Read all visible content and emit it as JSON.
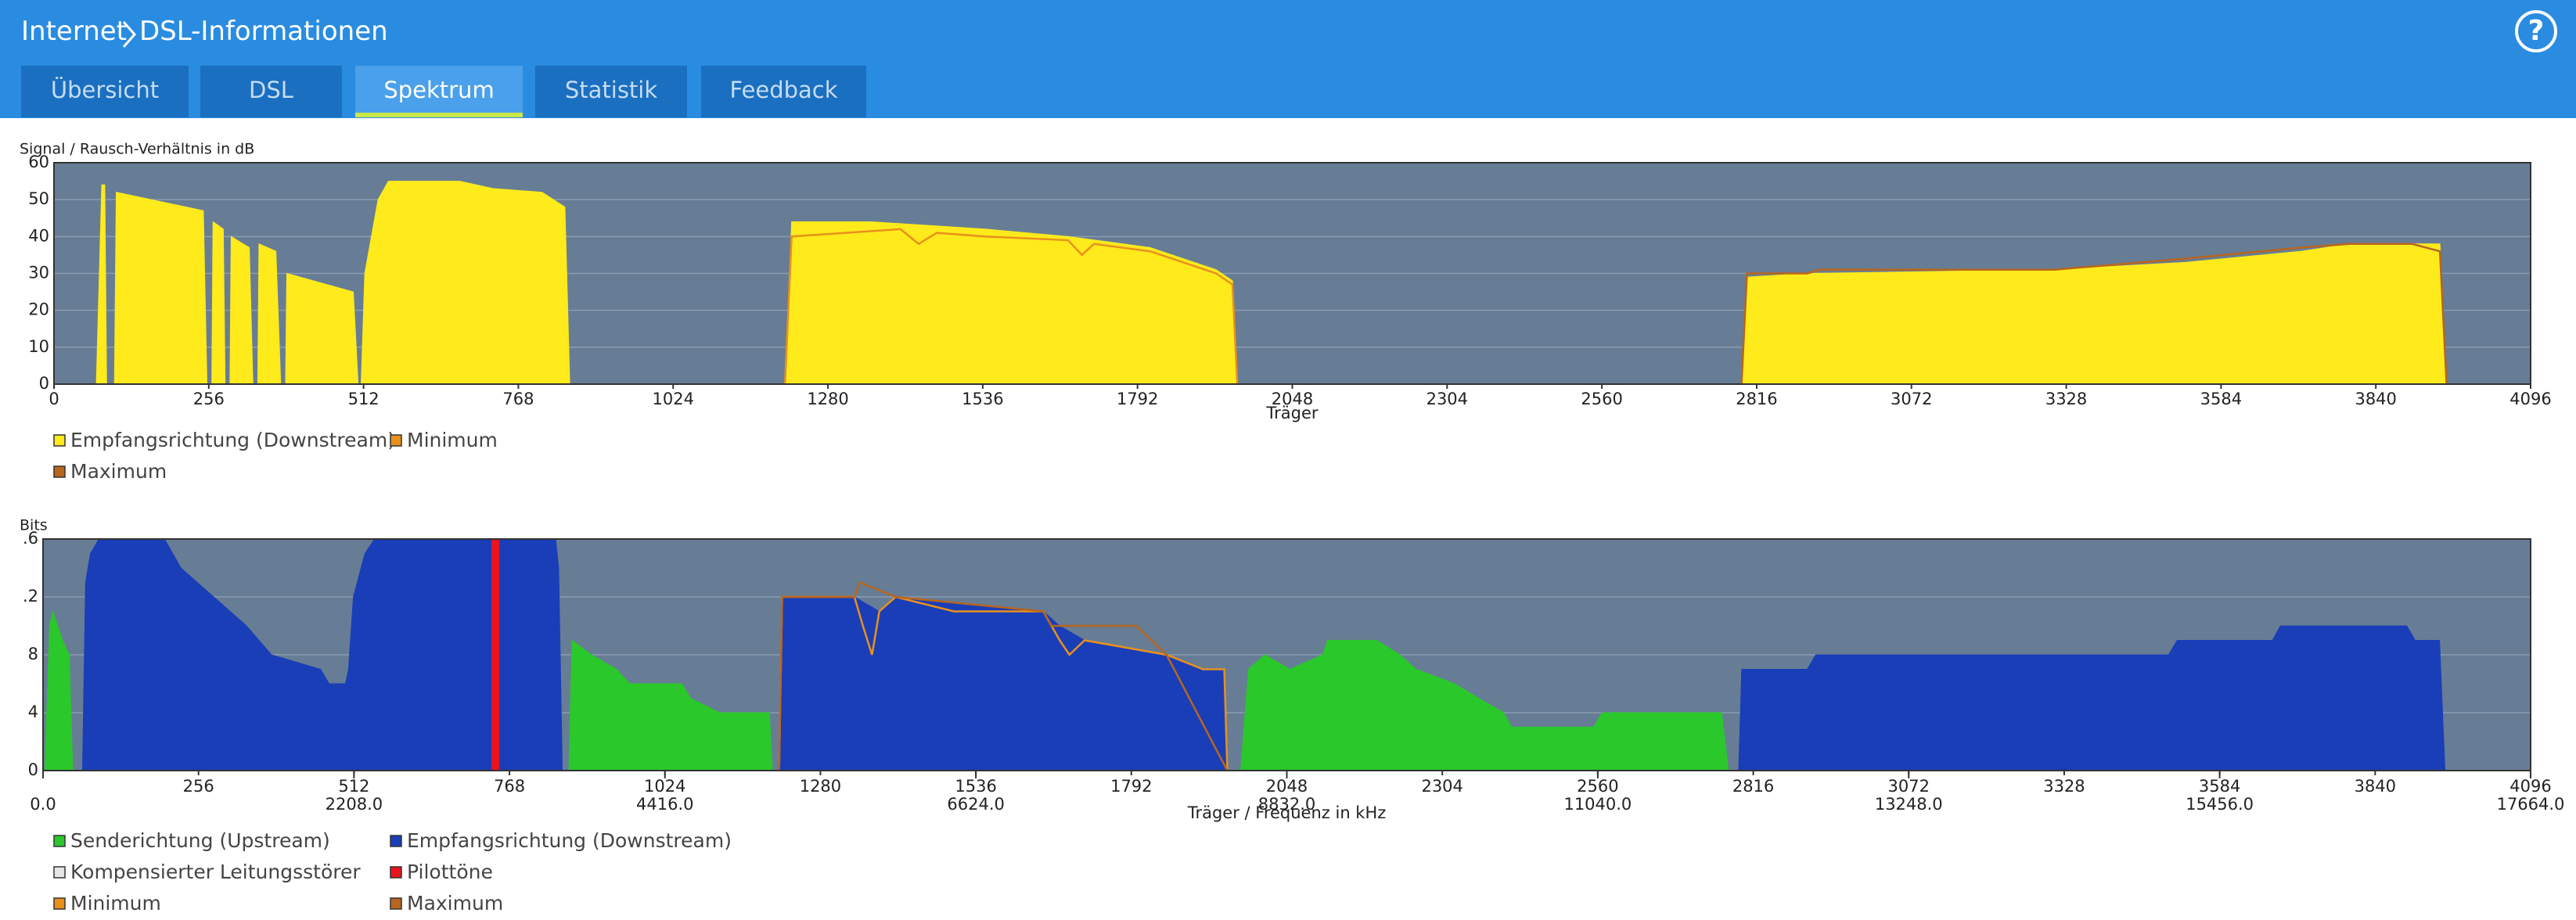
{
  "header": {
    "title": [
      "Internet",
      "DSL-Informationen"
    ],
    "help": "?"
  },
  "tabs": {
    "items": [
      "Übersicht",
      "DSL",
      "Spektrum",
      "Statistik",
      "Feedback"
    ],
    "active": 2
  },
  "chart_data": [
    {
      "type": "area",
      "y_label": "Signal / Rausch-Verhältnis in dB",
      "x_label": "Träger",
      "xlim": [
        0,
        4096
      ],
      "ylim": [
        0,
        60
      ],
      "xticks": [
        0,
        256,
        512,
        768,
        1024,
        1280,
        1536,
        1792,
        2048,
        2304,
        2560,
        2816,
        3072,
        3328,
        3584,
        3840,
        4096
      ],
      "yticks": [
        0,
        10,
        20,
        30,
        40,
        50,
        60
      ],
      "grid": true,
      "series": [
        {
          "name": "Empfangsrichtung (Downstream)",
          "color": "#ffea1c",
          "type": "area",
          "x": [
            70,
            79,
            84,
            87,
            100,
            103,
            247,
            253,
            261,
            263,
            280,
            283,
            291,
            293,
            323,
            329,
            337,
            339,
            367,
            375,
            383,
            385,
            495,
            503,
            508,
            514,
            536,
            553,
            671,
            726,
            807,
            845,
            853,
            1209,
            1220,
            1351,
            1541,
            1677,
            1813,
            1922,
            1949,
            1957,
            2791,
            2800,
            2900,
            3308,
            3525,
            3716,
            3797,
            3946,
            3957
          ],
          "values": [
            0,
            54,
            54,
            0,
            0,
            52,
            47,
            0,
            0,
            44,
            42,
            0,
            0,
            40,
            37,
            0,
            0,
            38,
            36,
            0,
            0,
            30,
            25,
            0,
            0,
            30,
            50,
            55,
            55,
            53,
            52,
            48,
            0,
            0,
            44,
            44,
            42,
            40,
            37,
            31,
            28,
            0,
            0,
            29,
            30,
            31,
            33,
            36,
            38,
            38,
            0
          ]
        },
        {
          "name": "Minimum",
          "color": "#e8901c",
          "type": "line",
          "x": [
            1209,
            1220,
            1400,
            1430,
            1460,
            1541,
            1677,
            1700,
            1720,
            1813,
            1922,
            1949,
            1957
          ],
          "values": [
            0,
            40,
            42,
            38,
            41,
            40,
            39,
            35,
            38,
            36,
            30,
            27,
            0
          ]
        },
        {
          "name": "Maximum",
          "color": "#b8651e",
          "type": "line",
          "x": [
            2791,
            2800,
            2900,
            2920,
            3308,
            3525,
            3716,
            3797,
            3900,
            3946,
            3957
          ],
          "values": [
            0,
            30,
            30,
            31,
            31,
            34,
            37,
            38,
            38,
            36,
            0
          ]
        }
      ]
    },
    {
      "type": "area",
      "y_label": "Bits",
      "x_label": "Träger / Frequenz in kHz",
      "xlim": [
        0,
        4096
      ],
      "ylim": [
        0,
        16
      ],
      "xticks": [
        256,
        512,
        768,
        1024,
        1280,
        1536,
        1792,
        2048,
        2304,
        2560,
        2816,
        3072,
        3328,
        3584,
        3840,
        4096
      ],
      "x2ticks": [
        {
          "value": 0,
          "label": "0.0"
        },
        {
          "value": 512,
          "label": "2208.0"
        },
        {
          "value": 1024,
          "label": "4416.0"
        },
        {
          "value": 1536,
          "label": "6624.0"
        },
        {
          "value": 2048,
          "label": "8832.0"
        },
        {
          "value": 2560,
          "label": "11040.0"
        },
        {
          "value": 3072,
          "label": "13248.0"
        },
        {
          "value": 3584,
          "label": "15456.0"
        },
        {
          "value": 4096,
          "label": "17664.0"
        }
      ],
      "yticks": [
        0,
        4,
        8,
        {
          "value": 12,
          "label": ".2"
        },
        {
          "value": 16,
          "label": ".6"
        }
      ],
      "grid": true,
      "series": [
        {
          "name": "Senderichtung (Upstream)",
          "color": "#2ac82a",
          "type": "area",
          "x": [
            3,
            11,
            16,
            32,
            43,
            49,
            866,
            871,
            903,
            944,
            966,
            1052,
            1066,
            1114,
            1196,
            1201,
            1972,
            1985,
            2012,
            2053,
            2107,
            2115,
            2196,
            2234,
            2261,
            2324,
            2364,
            2405,
            2418,
            2553,
            2567,
            2764,
            2775
          ],
          "values": [
            0,
            10,
            11,
            9,
            8,
            0,
            0,
            9,
            8,
            7,
            6,
            6,
            5,
            4,
            4,
            0,
            0,
            7,
            8,
            7,
            8,
            9,
            9,
            8,
            7,
            6,
            5,
            4,
            3,
            3,
            4,
            4,
            0
          ]
        },
        {
          "name": "Empfangsrichtung (Downstream)",
          "color": "#1a3eb8",
          "type": "area",
          "x": [
            65,
            70,
            78,
            92,
            200,
            227,
            281,
            335,
            376,
            457,
            471,
            498,
            503,
            511,
            530,
            546,
            844,
            849,
            855,
            1212,
            1217,
            1336,
            1377,
            1404,
            1647,
            1674,
            1715,
            1850,
            1910,
            1945,
            1950,
            2792,
            2797,
            2905,
            2919,
            3500,
            3514,
            3671,
            3684,
            3892,
            3906,
            3946,
            3955
          ],
          "values": [
            0,
            13,
            15,
            16,
            16,
            14,
            12,
            10,
            8,
            7,
            6,
            6,
            7,
            12,
            15,
            16,
            16,
            14,
            0,
            0,
            12,
            12,
            11,
            12,
            11,
            10,
            9,
            8,
            7,
            7,
            0,
            0,
            7,
            7,
            8,
            8,
            9,
            9,
            10,
            10,
            9,
            9,
            0
          ]
        },
        {
          "name": "Kompensierter Leitungsstörer",
          "color": "#e6e6e6"
        },
        {
          "name": "Pilottöne",
          "color": "#e8141e",
          "type": "bar",
          "x": [
            745
          ],
          "values": [
            16
          ]
        },
        {
          "name": "Minimum",
          "color": "#e8901c",
          "type": "line",
          "x": [
            1212,
            1217,
            1336,
            1350,
            1365,
            1377,
            1404,
            1500,
            1647,
            1674,
            1690,
            1715,
            1850,
            1910,
            1945,
            1950
          ],
          "values": [
            0,
            12,
            12,
            10,
            8,
            11,
            12,
            11,
            11,
            9,
            8,
            9,
            8,
            7,
            7,
            0
          ]
        },
        {
          "name": "Maximum",
          "color": "#b8651e",
          "type": "line",
          "x": [
            1212,
            1217,
            1336,
            1345,
            1404,
            1647,
            1660,
            1800,
            1850,
            1950
          ],
          "values": [
            0,
            12,
            12,
            13,
            12,
            11,
            10,
            10,
            8,
            0
          ]
        }
      ]
    }
  ]
}
